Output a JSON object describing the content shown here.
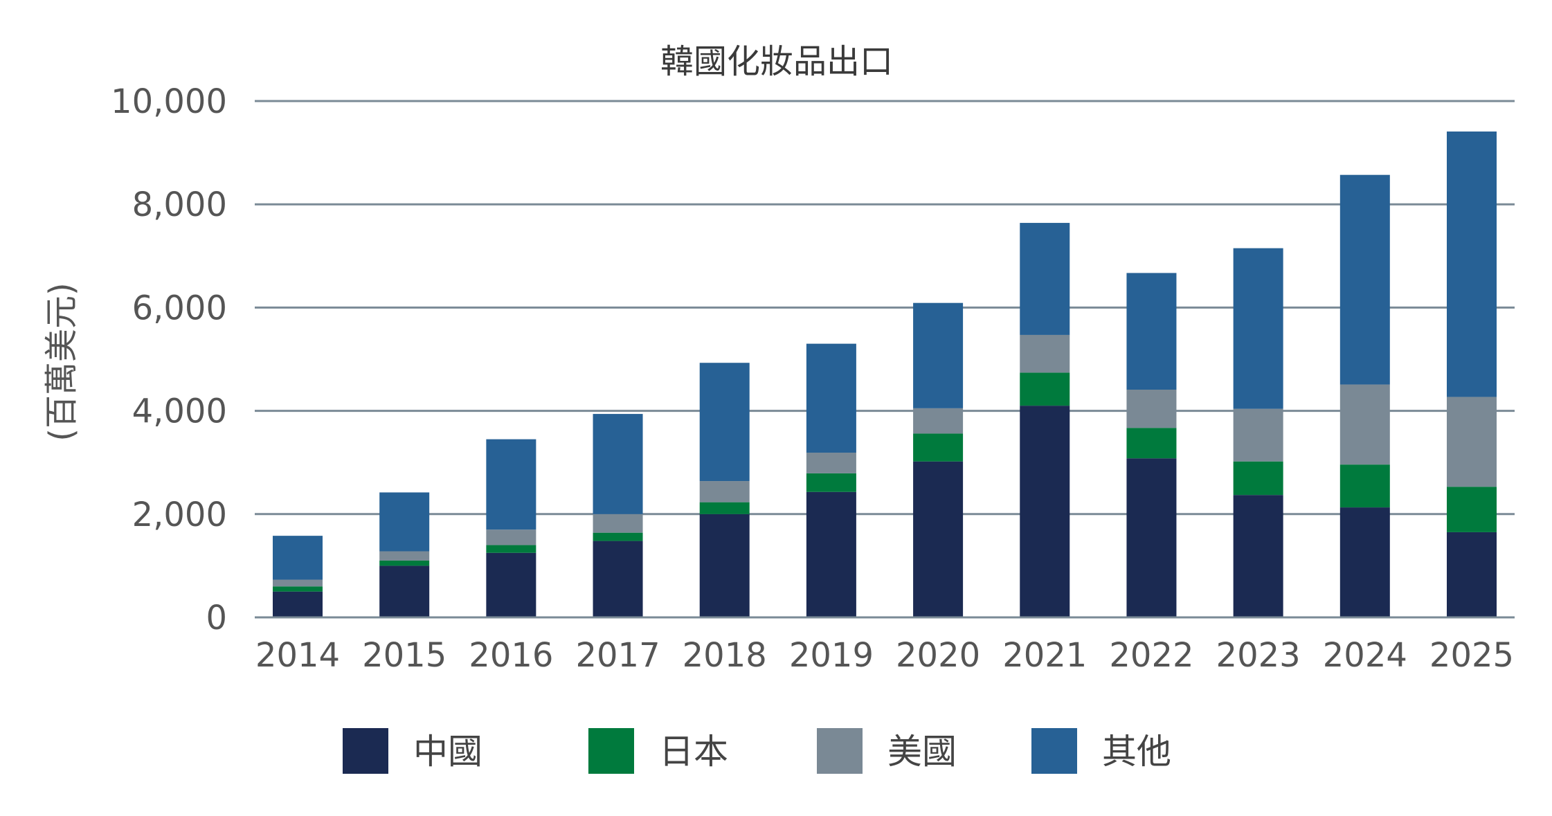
{
  "chart_data": {
    "type": "bar",
    "stacked": true,
    "title": "韓國化妝品出口",
    "xlabel": "",
    "ylabel": "(百萬美元)",
    "ylim": [
      0,
      10000
    ],
    "yticks": [
      0,
      2000,
      4000,
      6000,
      8000,
      10000
    ],
    "ytick_labels": [
      "0",
      "2,000",
      "4,000",
      "6,000",
      "8,000",
      "10,000"
    ],
    "grid": true,
    "legend_position": "bottom",
    "categories": [
      "2014",
      "2015",
      "2016",
      "2017",
      "2018",
      "2019",
      "2020",
      "2021",
      "2022",
      "2023",
      "2024",
      "2025"
    ],
    "series": [
      {
        "name": "中國",
        "color": "#1b2a52",
        "values": [
          500,
          1000,
          1250,
          1480,
          2000,
          2430,
          3020,
          4100,
          3080,
          2370,
          2130,
          1650
        ]
      },
      {
        "name": "日本",
        "color": "#007a3d",
        "values": [
          100,
          100,
          150,
          160,
          230,
          360,
          540,
          640,
          590,
          650,
          830,
          880
        ]
      },
      {
        "name": "美國",
        "color": "#7a8995",
        "values": [
          130,
          180,
          300,
          360,
          410,
          400,
          490,
          730,
          740,
          1020,
          1550,
          1740
        ]
      },
      {
        "name": "其他",
        "color": "#276195",
        "values": [
          850,
          1140,
          1750,
          1940,
          2290,
          2110,
          2040,
          2170,
          2260,
          3110,
          4060,
          5140
        ]
      }
    ]
  }
}
